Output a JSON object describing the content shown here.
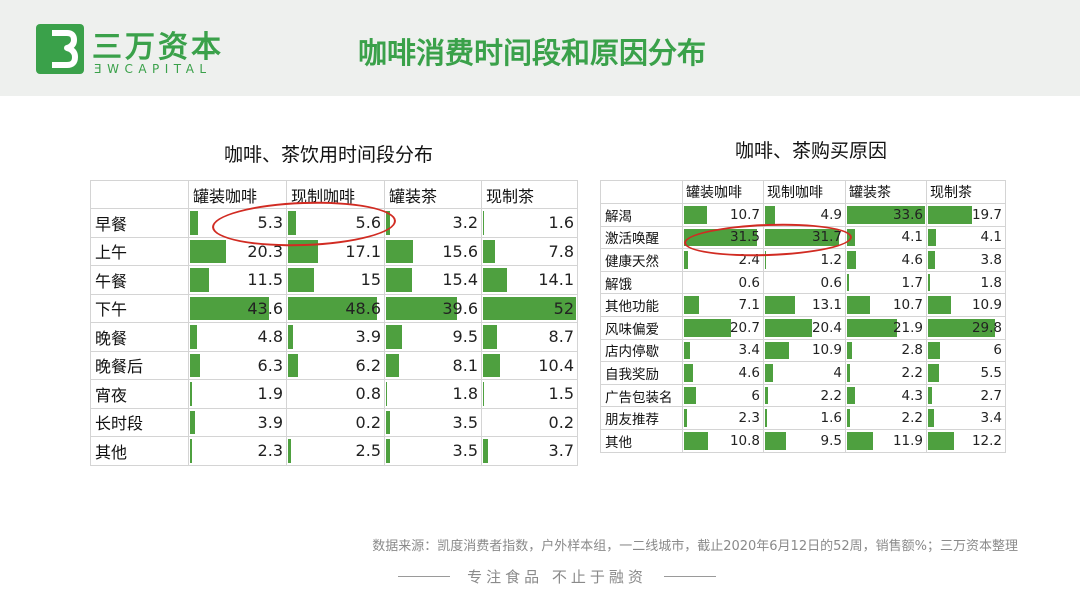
{
  "header": {
    "brand_cn": "三万资本",
    "brand_en": "ƎWCAPITAL",
    "title": "咖啡消费时间段和原因分布"
  },
  "colors": {
    "accent": "#3aa14a",
    "bar": "#4ea03f",
    "highlight": "#d12b22"
  },
  "footer": {
    "source": "数据来源：凯度消费者指数，户外样本组，一二线城市，截止2020年6月12日的52周，销售额%；三万资本整理",
    "slogan": "专注食品  不止于融资"
  },
  "chart_data": [
    {
      "type": "table",
      "title": "咖啡、茶饮用时间段分布",
      "categories": [
        "早餐",
        "上午",
        "午餐",
        "下午",
        "晚餐",
        "晚餐后",
        "宵夜",
        "长时段",
        "其他"
      ],
      "series": [
        {
          "name": "罐装咖啡",
          "values": [
            5.3,
            20.3,
            11.5,
            43.6,
            4.8,
            6.3,
            1.9,
            3.9,
            2.3
          ]
        },
        {
          "name": "现制咖啡",
          "values": [
            5.6,
            17.1,
            15,
            48.6,
            3.9,
            6.2,
            0.8,
            0.2,
            2.5
          ]
        },
        {
          "name": "罐装茶",
          "values": [
            3.2,
            15.6,
            15.4,
            39.6,
            9.5,
            8.1,
            1.8,
            3.5,
            3.5
          ]
        },
        {
          "name": "现制茶",
          "values": [
            1.6,
            7.8,
            14.1,
            52,
            8.7,
            10.4,
            1.5,
            0.2,
            3.7
          ]
        }
      ]
    },
    {
      "type": "table",
      "title": "咖啡、茶购买原因",
      "categories": [
        "解渴",
        "激活唤醒",
        "健康天然",
        "解饿",
        "其他功能",
        "风味偏爱",
        "店内停歇",
        "自我奖励",
        "广告包装名",
        "朋友推荐",
        "其他"
      ],
      "series": [
        {
          "name": "罐装咖啡",
          "values": [
            10.7,
            31.5,
            2.4,
            0.6,
            7.1,
            20.7,
            3.4,
            4.6,
            6,
            2.3,
            10.8
          ]
        },
        {
          "name": "现制咖啡",
          "values": [
            4.9,
            31.7,
            1.2,
            0.6,
            13.1,
            20.4,
            10.9,
            4,
            2.2,
            1.6,
            9.5
          ]
        },
        {
          "name": "罐装茶",
          "values": [
            33.6,
            4.1,
            4.6,
            1.7,
            10.7,
            21.9,
            2.8,
            2.2,
            4.3,
            2.2,
            11.9
          ]
        },
        {
          "name": "现制茶",
          "values": [
            19.7,
            4.1,
            3.8,
            1.8,
            10.9,
            29.8,
            6,
            5.5,
            2.7,
            3.4,
            12.2
          ]
        }
      ]
    }
  ]
}
